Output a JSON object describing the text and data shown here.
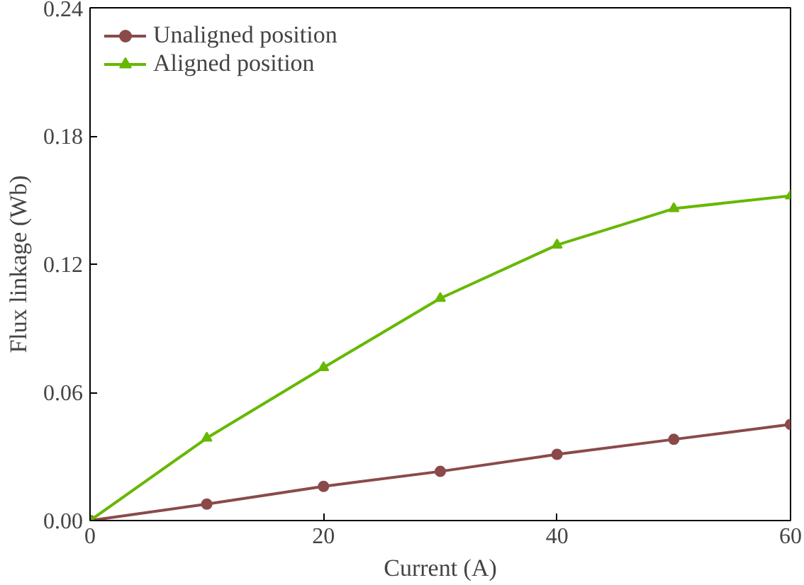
{
  "chart_data": {
    "type": "line",
    "xlabel": "Current (A)",
    "ylabel": "Flux linkage (Wb)",
    "x": [
      0,
      10,
      20,
      30,
      40,
      50,
      60
    ],
    "series": [
      {
        "name": "Unaligned position",
        "color": "#8b4a4a",
        "marker": "circle",
        "values": [
          0,
          0.0077,
          0.016,
          0.023,
          0.031,
          0.038,
          0.045
        ]
      },
      {
        "name": "Aligned position",
        "color": "#66b800",
        "marker": "triangle",
        "values": [
          0,
          0.0386,
          0.0716,
          0.104,
          0.129,
          0.146,
          0.152
        ]
      }
    ],
    "xlim": [
      0,
      60
    ],
    "ylim": [
      0,
      0.24
    ],
    "xticks": [
      0,
      20,
      40,
      60
    ],
    "yticks": [
      {
        "value": 0,
        "label": "0.00"
      },
      {
        "value": 0.06,
        "label": "0.06"
      },
      {
        "value": 0.12,
        "label": "0.12"
      },
      {
        "value": 0.18,
        "label": "0.18"
      },
      {
        "value": 0.24,
        "label": "0.24"
      }
    ],
    "grid": false,
    "legend": "top left",
    "line_style": "solid"
  }
}
